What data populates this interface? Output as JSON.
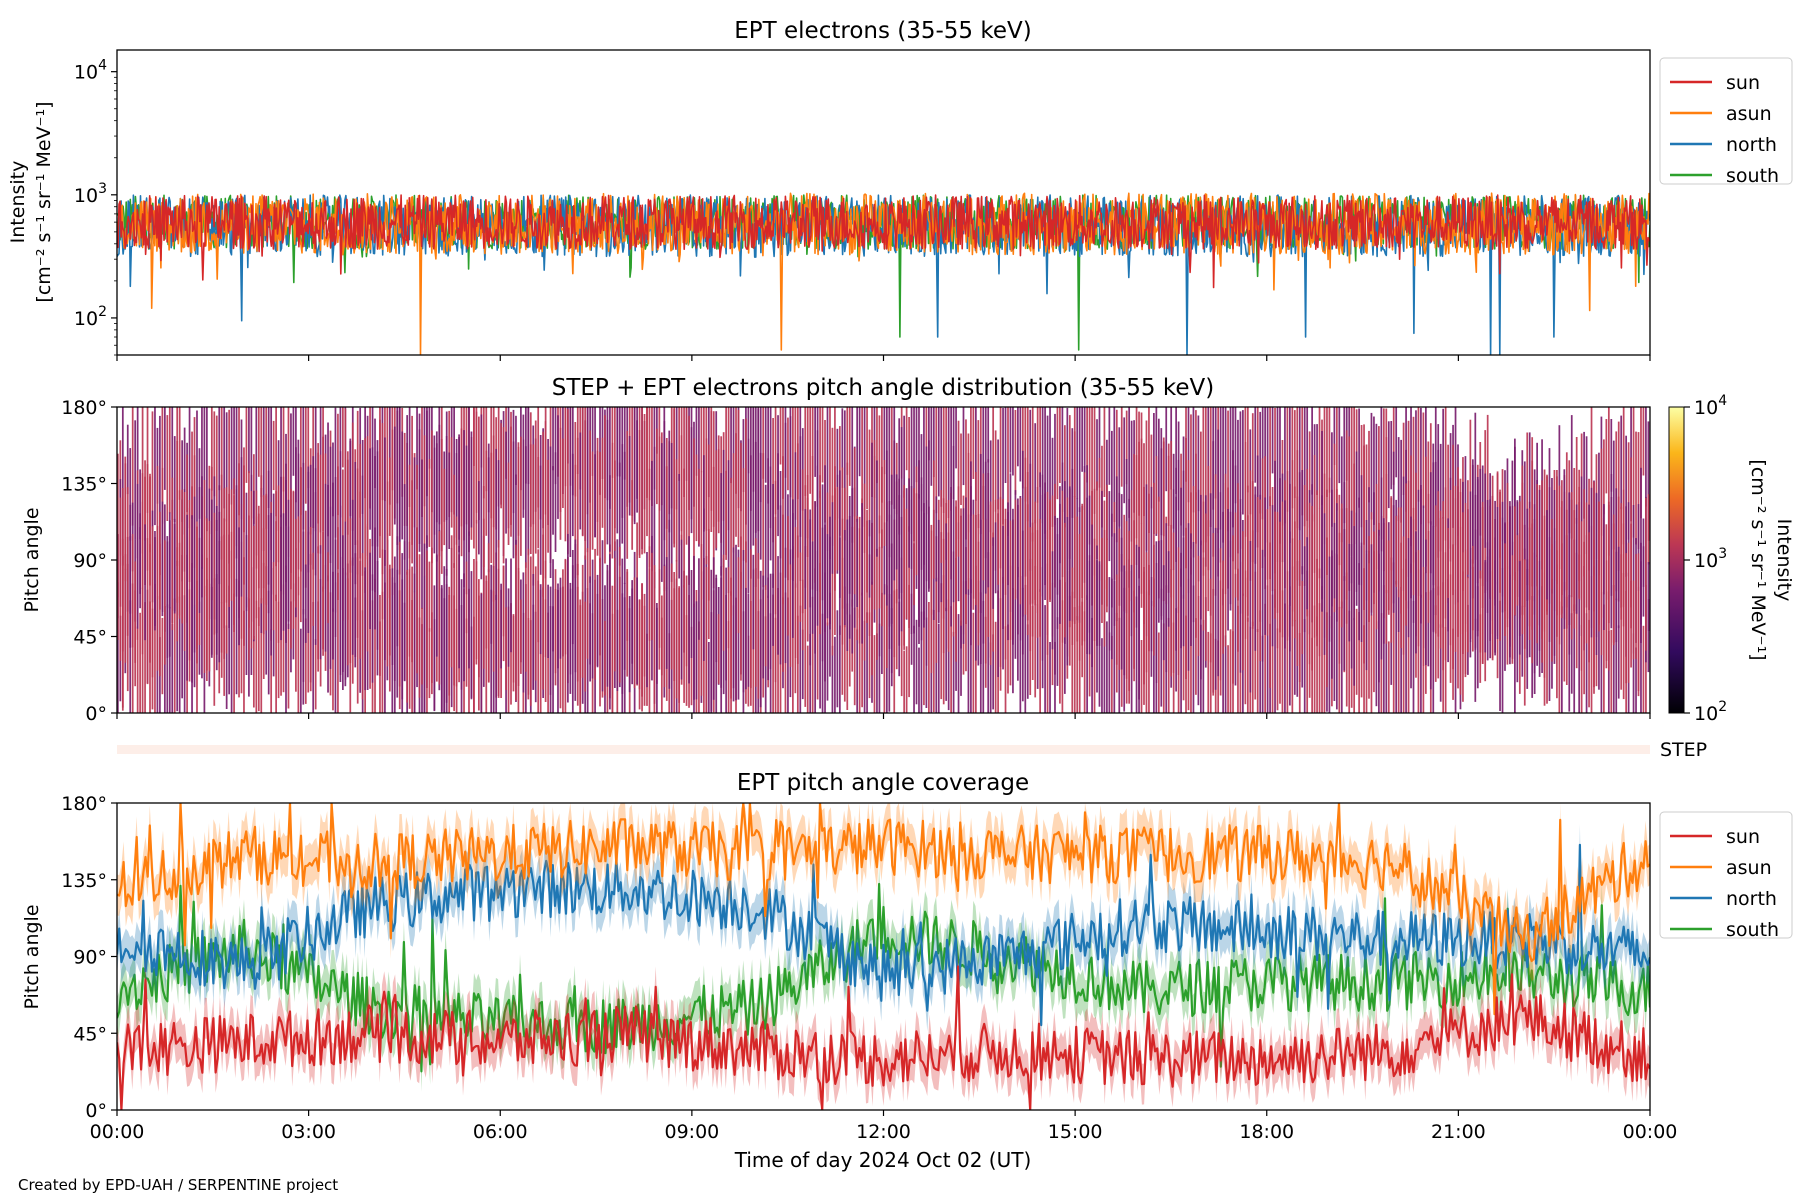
{
  "figure": {
    "credit": "Created by EPD-UAH / SERPENTINE project",
    "xlabel": "Time of day 2024 Oct 02 (UT)",
    "x_ticks": [
      "00:00",
      "03:00",
      "06:00",
      "09:00",
      "12:00",
      "15:00",
      "18:00",
      "21:00",
      "00:00"
    ],
    "colors": {
      "sun": "#d62728",
      "asun": "#ff7f0e",
      "north": "#1f77b4",
      "south": "#2ca02c",
      "step_band": "#fdeee8"
    }
  },
  "chart_data": [
    {
      "type": "line",
      "title": "EPT electrons (35-55 keV)",
      "ylabel_line1": "Intensity",
      "ylabel_line2": "[cm⁻² s⁻¹ sr⁻¹ MeV⁻¹]",
      "yscale": "log",
      "ylim": [
        50,
        15000
      ],
      "y_ticks": [
        {
          "base": "10",
          "exp": "2",
          "value": 100
        },
        {
          "base": "10",
          "exp": "3",
          "value": 1000
        },
        {
          "base": "10",
          "exp": "4",
          "value": 10000
        }
      ],
      "x_hours": [
        0,
        24
      ],
      "legend_position": "right-outside-top",
      "series": [
        {
          "name": "sun",
          "level": 600,
          "spread": 0.22
        },
        {
          "name": "asun",
          "level": 580,
          "spread": 0.25
        },
        {
          "name": "north",
          "level": 560,
          "spread": 0.25
        },
        {
          "name": "south",
          "level": 600,
          "spread": 0.22
        }
      ],
      "dips": [
        {
          "name": "north",
          "t": 1.95,
          "value": 95
        },
        {
          "name": "asun",
          "t": 0.55,
          "value": 120
        },
        {
          "name": "asun",
          "t": 4.75,
          "value": 50
        },
        {
          "name": "asun",
          "t": 10.4,
          "value": 55
        },
        {
          "name": "south",
          "t": 12.25,
          "value": 70
        },
        {
          "name": "north",
          "t": 12.85,
          "value": 70
        },
        {
          "name": "south",
          "t": 15.05,
          "value": 55
        },
        {
          "name": "north",
          "t": 16.75,
          "value": 50
        },
        {
          "name": "north",
          "t": 18.6,
          "value": 70
        },
        {
          "name": "north",
          "t": 20.3,
          "value": 75
        },
        {
          "name": "north",
          "t": 21.5,
          "value": 50
        },
        {
          "name": "north",
          "t": 21.65,
          "value": 50
        },
        {
          "name": "north",
          "t": 22.5,
          "value": 70
        },
        {
          "name": "asun",
          "t": 23.05,
          "value": 115
        }
      ]
    },
    {
      "type": "heatmap",
      "title": "STEP + EPT electrons pitch angle distribution (35-55 keV)",
      "ylabel": "Pitch angle",
      "y_ticks": [
        "0°",
        "45°",
        "90°",
        "135°",
        "180°"
      ],
      "ylim": [
        0,
        180
      ],
      "colorbar": {
        "scale": "log",
        "range": [
          100,
          10000
        ],
        "label_line1": "Intensity",
        "label_line2": "[cm⁻² s⁻¹ sr⁻¹ MeV⁻¹]",
        "ticks": [
          {
            "base": "10",
            "exp": "2"
          },
          {
            "base": "10",
            "exp": "3"
          },
          {
            "base": "10",
            "exp": "4"
          }
        ],
        "colormap": "inferno"
      },
      "typical_intensity": 700
    },
    {
      "type": "heatmap",
      "label": "STEP",
      "note": "thin STEP band, nearly empty"
    },
    {
      "type": "line",
      "title": "EPT pitch angle coverage",
      "ylabel": "Pitch angle",
      "y_ticks": [
        "0°",
        "45°",
        "90°",
        "135°",
        "180°"
      ],
      "ylim": [
        0,
        180
      ],
      "legend_position": "right-outside-top",
      "series": [
        {
          "name": "sun",
          "points": [
            [
              0,
              35
            ],
            [
              2,
              40
            ],
            [
              4,
              45
            ],
            [
              6,
              40
            ],
            [
              8,
              45
            ],
            [
              10,
              35
            ],
            [
              12,
              30
            ],
            [
              14,
              35
            ],
            [
              16,
              30
            ],
            [
              18,
              30
            ],
            [
              20,
              35
            ],
            [
              22,
              55
            ],
            [
              24,
              30
            ]
          ]
        },
        {
          "name": "asun",
          "points": [
            [
              0,
              130
            ],
            [
              2,
              150
            ],
            [
              4,
              145
            ],
            [
              6,
              150
            ],
            [
              8,
              155
            ],
            [
              10,
              150
            ],
            [
              12,
              155
            ],
            [
              14,
              150
            ],
            [
              16,
              150
            ],
            [
              18,
              150
            ],
            [
              20,
              145
            ],
            [
              22,
              100
            ],
            [
              24,
              150
            ]
          ]
        },
        {
          "name": "north",
          "points": [
            [
              0,
              100
            ],
            [
              2,
              85
            ],
            [
              4,
              120
            ],
            [
              6,
              130
            ],
            [
              8,
              130
            ],
            [
              10,
              120
            ],
            [
              12,
              80
            ],
            [
              14,
              90
            ],
            [
              16,
              110
            ],
            [
              18,
              105
            ],
            [
              20,
              100
            ],
            [
              22,
              100
            ],
            [
              24,
              90
            ]
          ]
        },
        {
          "name": "south",
          "points": [
            [
              0,
              70
            ],
            [
              2,
              95
            ],
            [
              4,
              60
            ],
            [
              6,
              50
            ],
            [
              8,
              50
            ],
            [
              10,
              60
            ],
            [
              12,
              105
            ],
            [
              14,
              90
            ],
            [
              16,
              70
            ],
            [
              18,
              75
            ],
            [
              20,
              75
            ],
            [
              22,
              80
            ],
            [
              24,
              70
            ]
          ]
        }
      ]
    }
  ]
}
